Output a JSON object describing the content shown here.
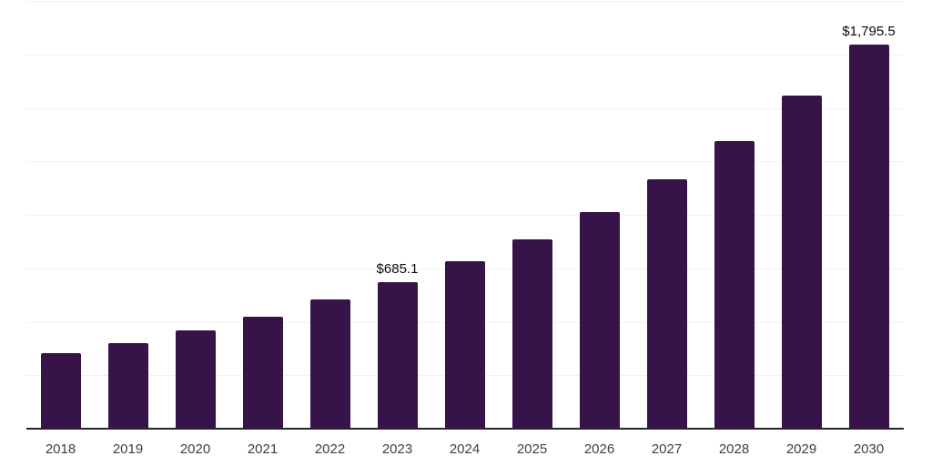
{
  "chart_data": {
    "type": "bar",
    "title": "",
    "xlabel": "",
    "ylabel": "",
    "categories": [
      "2018",
      "2019",
      "2020",
      "2021",
      "2022",
      "2023",
      "2024",
      "2025",
      "2026",
      "2027",
      "2028",
      "2029",
      "2030"
    ],
    "values": [
      353,
      400,
      460,
      523,
      604,
      685.1,
      783,
      885,
      1013,
      1166,
      1345,
      1557,
      1795.5
    ],
    "bar_labels": [
      "",
      "",
      "",
      "",
      "",
      "$685.1",
      "",
      "",
      "",
      "",
      "",
      "",
      "$1,795.5"
    ],
    "ylim": [
      0,
      2000
    ],
    "grid_interval": 250,
    "grid": "horizontal-only",
    "legend": "none",
    "colors": {
      "bar": "#361349",
      "axis": "#262626",
      "grid": "#f1f1f1",
      "value_label": "#0a0a0a",
      "tick_label": "#404040",
      "background": "#ffffff"
    }
  }
}
